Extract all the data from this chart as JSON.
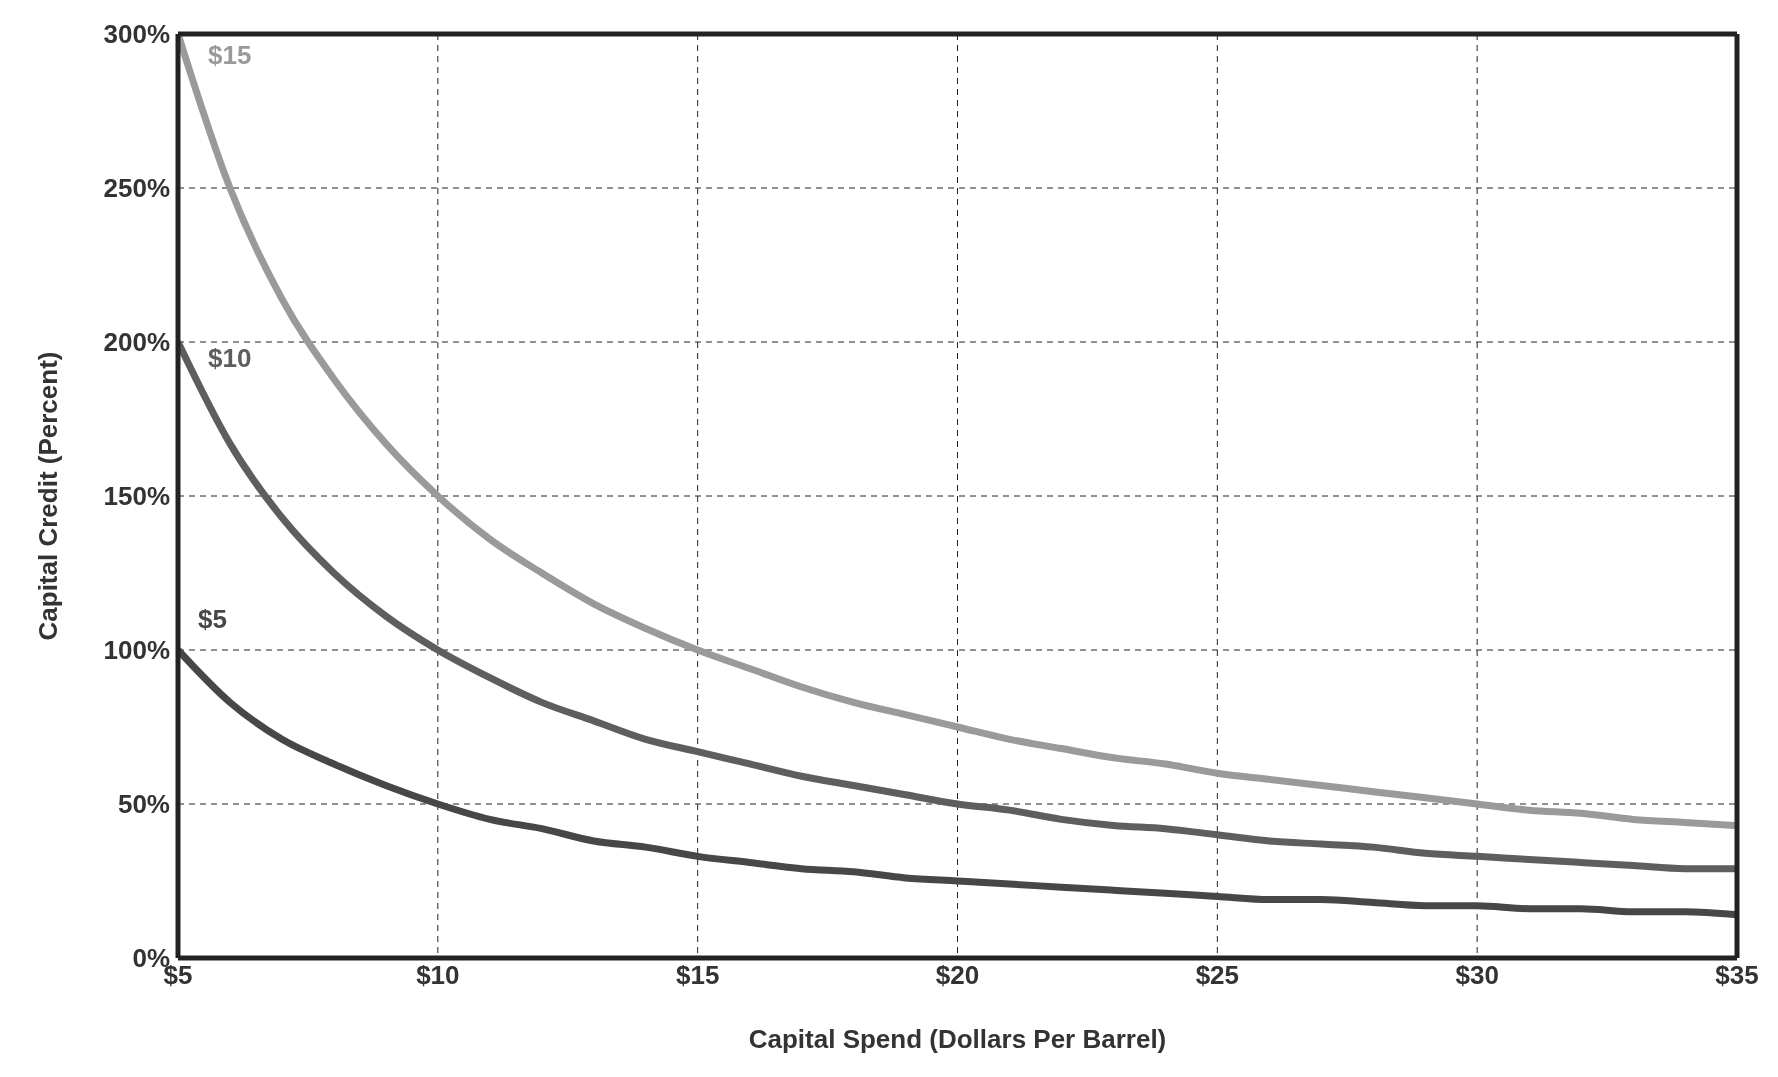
{
  "chart_data": {
    "type": "line",
    "xlabel": "Capital Spend (Dollars Per Barrel)",
    "ylabel": "Capital Credit (Percent)",
    "x": [
      5,
      6,
      7,
      8,
      9,
      10,
      11,
      12,
      13,
      14,
      15,
      16,
      17,
      18,
      19,
      20,
      21,
      22,
      23,
      24,
      25,
      26,
      27,
      28,
      29,
      30,
      31,
      32,
      33,
      34,
      35
    ],
    "series": [
      {
        "name": "$15",
        "color": "#9a9a9a",
        "values": [
          300,
          250,
          214,
          188,
          167,
          150,
          136,
          125,
          115,
          107,
          100,
          94,
          88,
          83,
          79,
          75,
          71,
          68,
          65,
          63,
          60,
          58,
          56,
          54,
          52,
          50,
          48,
          47,
          45,
          44,
          43
        ]
      },
      {
        "name": "$10",
        "color": "#5e5e5e",
        "values": [
          200,
          167,
          143,
          125,
          111,
          100,
          91,
          83,
          77,
          71,
          67,
          63,
          59,
          56,
          53,
          50,
          48,
          45,
          43,
          42,
          40,
          38,
          37,
          36,
          34,
          33,
          32,
          31,
          30,
          29,
          29
        ]
      },
      {
        "name": "$5",
        "color": "#474747",
        "values": [
          100,
          83,
          71,
          63,
          56,
          50,
          45,
          42,
          38,
          36,
          33,
          31,
          29,
          28,
          26,
          25,
          24,
          23,
          22,
          21,
          20,
          19,
          19,
          18,
          17,
          17,
          16,
          16,
          15,
          15,
          14
        ]
      }
    ],
    "xlim": [
      5,
      35
    ],
    "xticks": [
      {
        "value": 5,
        "label": "$5"
      },
      {
        "value": 10,
        "label": "$10"
      },
      {
        "value": 15,
        "label": "$15"
      },
      {
        "value": 20,
        "label": "$20"
      },
      {
        "value": 25,
        "label": "$25"
      },
      {
        "value": 30,
        "label": "$30"
      },
      {
        "value": 35,
        "label": "$35"
      }
    ],
    "ylim": [
      0,
      300
    ],
    "yticks": [
      {
        "value": 0,
        "label": "0%"
      },
      {
        "value": 50,
        "label": "50%"
      },
      {
        "value": 100,
        "label": "100%"
      },
      {
        "value": 150,
        "label": "150%"
      },
      {
        "value": 200,
        "label": "200%"
      },
      {
        "value": 250,
        "label": "250%"
      },
      {
        "value": 300,
        "label": "300%"
      }
    ],
    "grid": true,
    "legend": false,
    "marker": "none",
    "line_style": "solid"
  }
}
